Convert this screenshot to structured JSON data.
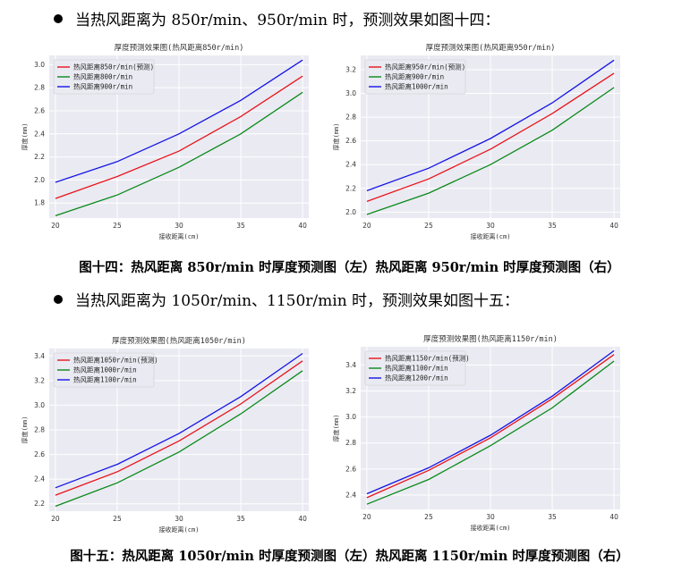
{
  "section1": {
    "text": "当热风距离为 850r/min、950r/min 时，预测效果如图十四："
  },
  "caption1": {
    "text": "图十四：热风距离 850r/min 时厚度预测图（左）热风距离 950r/min 时厚度预测图（右）"
  },
  "section2": {
    "text": "当热风距离为 1050r/min、1150r/min 时，预测效果如图十五："
  },
  "caption2": {
    "text": "图十五：热风距离 1050r/min 时厚度预测图（左）热风距离 1150r/min 时厚度预测图（右）"
  },
  "colors": {
    "red": "#e8141b",
    "green": "#0a8a1a",
    "blue": "#1414e6",
    "plot_bg": "#eaeaf2",
    "grid": "#ffffff"
  },
  "chart_data": [
    {
      "type": "line",
      "title": "厚度预测效果图(热风距离850r/min)",
      "xlabel": "接收距离(cm)",
      "ylabel": "厚度(mm)",
      "xlim": [
        19.5,
        40.5
      ],
      "ylim": [
        1.67,
        3.08
      ],
      "xticks": [
        20,
        25,
        30,
        35,
        40
      ],
      "yticks": [
        1.8,
        2.0,
        2.2,
        2.4,
        2.6,
        2.8,
        3.0
      ],
      "ytick_labels": [
        "1.8",
        "2.0",
        "2.2",
        "2.4",
        "2.6",
        "2.8",
        "3.0"
      ],
      "grid": true,
      "legend_position": "top-left",
      "x": [
        20,
        25,
        30,
        35,
        40
      ],
      "series": [
        {
          "name": "热风距离850r/min(预测)",
          "color": "red",
          "values": [
            1.84,
            2.03,
            2.25,
            2.55,
            2.9
          ]
        },
        {
          "name": "热风距离800r/min",
          "color": "green",
          "values": [
            1.69,
            1.87,
            2.11,
            2.4,
            2.76
          ]
        },
        {
          "name": "热风距离900r/min",
          "color": "blue",
          "values": [
            1.98,
            2.16,
            2.4,
            2.69,
            3.04
          ]
        }
      ]
    },
    {
      "type": "line",
      "title": "厚度预测效果图(热风距离950r/min)",
      "xlabel": "接收距离(cm)",
      "ylabel": "厚度(mm)",
      "xlim": [
        19.5,
        40.5
      ],
      "ylim": [
        1.95,
        3.32
      ],
      "xticks": [
        20,
        25,
        30,
        35,
        40
      ],
      "yticks": [
        2.0,
        2.2,
        2.4,
        2.6,
        2.8,
        3.0,
        3.2
      ],
      "ytick_labels": [
        "2.0",
        "2.2",
        "2.4",
        "2.6",
        "2.8",
        "3.0",
        "3.2"
      ],
      "grid": true,
      "legend_position": "top-left",
      "x": [
        20,
        25,
        30,
        35,
        40
      ],
      "series": [
        {
          "name": "热风距离950r/min(预测)",
          "color": "red",
          "values": [
            2.09,
            2.28,
            2.53,
            2.83,
            3.17
          ]
        },
        {
          "name": "热风距离900r/min",
          "color": "green",
          "values": [
            1.98,
            2.16,
            2.4,
            2.69,
            3.05
          ]
        },
        {
          "name": "热风距离1000r/min",
          "color": "blue",
          "values": [
            2.18,
            2.37,
            2.62,
            2.92,
            3.28
          ]
        }
      ]
    },
    {
      "type": "line",
      "title": "厚度预测效果图(热风距离1050r/min)",
      "xlabel": "接收距离(cm)",
      "ylabel": "厚度(mm)",
      "xlim": [
        19.5,
        40.5
      ],
      "ylim": [
        2.14,
        3.46
      ],
      "xticks": [
        20,
        25,
        30,
        35,
        40
      ],
      "yticks": [
        2.2,
        2.4,
        2.6,
        2.8,
        3.0,
        3.2,
        3.4
      ],
      "ytick_labels": [
        "2.2",
        "2.4",
        "2.6",
        "2.8",
        "3.0",
        "3.2",
        "3.4"
      ],
      "grid": true,
      "legend_position": "top-left",
      "x": [
        20,
        25,
        30,
        35,
        40
      ],
      "series": [
        {
          "name": "热风距离1050r/min(预测)",
          "color": "red",
          "values": [
            2.27,
            2.46,
            2.71,
            3.01,
            3.36
          ]
        },
        {
          "name": "热风距离1000r/min",
          "color": "green",
          "values": [
            2.18,
            2.37,
            2.62,
            2.93,
            3.28
          ]
        },
        {
          "name": "热风距离1100r/min",
          "color": "blue",
          "values": [
            2.33,
            2.52,
            2.77,
            3.07,
            3.42
          ]
        }
      ]
    },
    {
      "type": "line",
      "title": "厚度预测效果图(热风距离1150r/min)",
      "xlabel": "接收距离(cm)",
      "ylabel": "厚度(mm)",
      "xlim": [
        19.5,
        40.5
      ],
      "ylim": [
        2.29,
        3.54
      ],
      "xticks": [
        20,
        25,
        30,
        35,
        40
      ],
      "yticks": [
        2.4,
        2.6,
        2.8,
        3.0,
        3.2,
        3.4
      ],
      "ytick_labels": [
        "2.4",
        "2.6",
        "2.8",
        "3.0",
        "3.2",
        "3.4"
      ],
      "grid": true,
      "legend_position": "top-left",
      "x": [
        20,
        25,
        30,
        35,
        40
      ],
      "series": [
        {
          "name": "热风距离1150r/min(预测)",
          "color": "red",
          "values": [
            2.38,
            2.59,
            2.84,
            3.14,
            3.48
          ]
        },
        {
          "name": "热风距离1100r/min",
          "color": "green",
          "values": [
            2.33,
            2.52,
            2.78,
            3.07,
            3.43
          ]
        },
        {
          "name": "热风距离1200r/min",
          "color": "blue",
          "values": [
            2.41,
            2.61,
            2.86,
            3.16,
            3.51
          ]
        }
      ]
    }
  ]
}
